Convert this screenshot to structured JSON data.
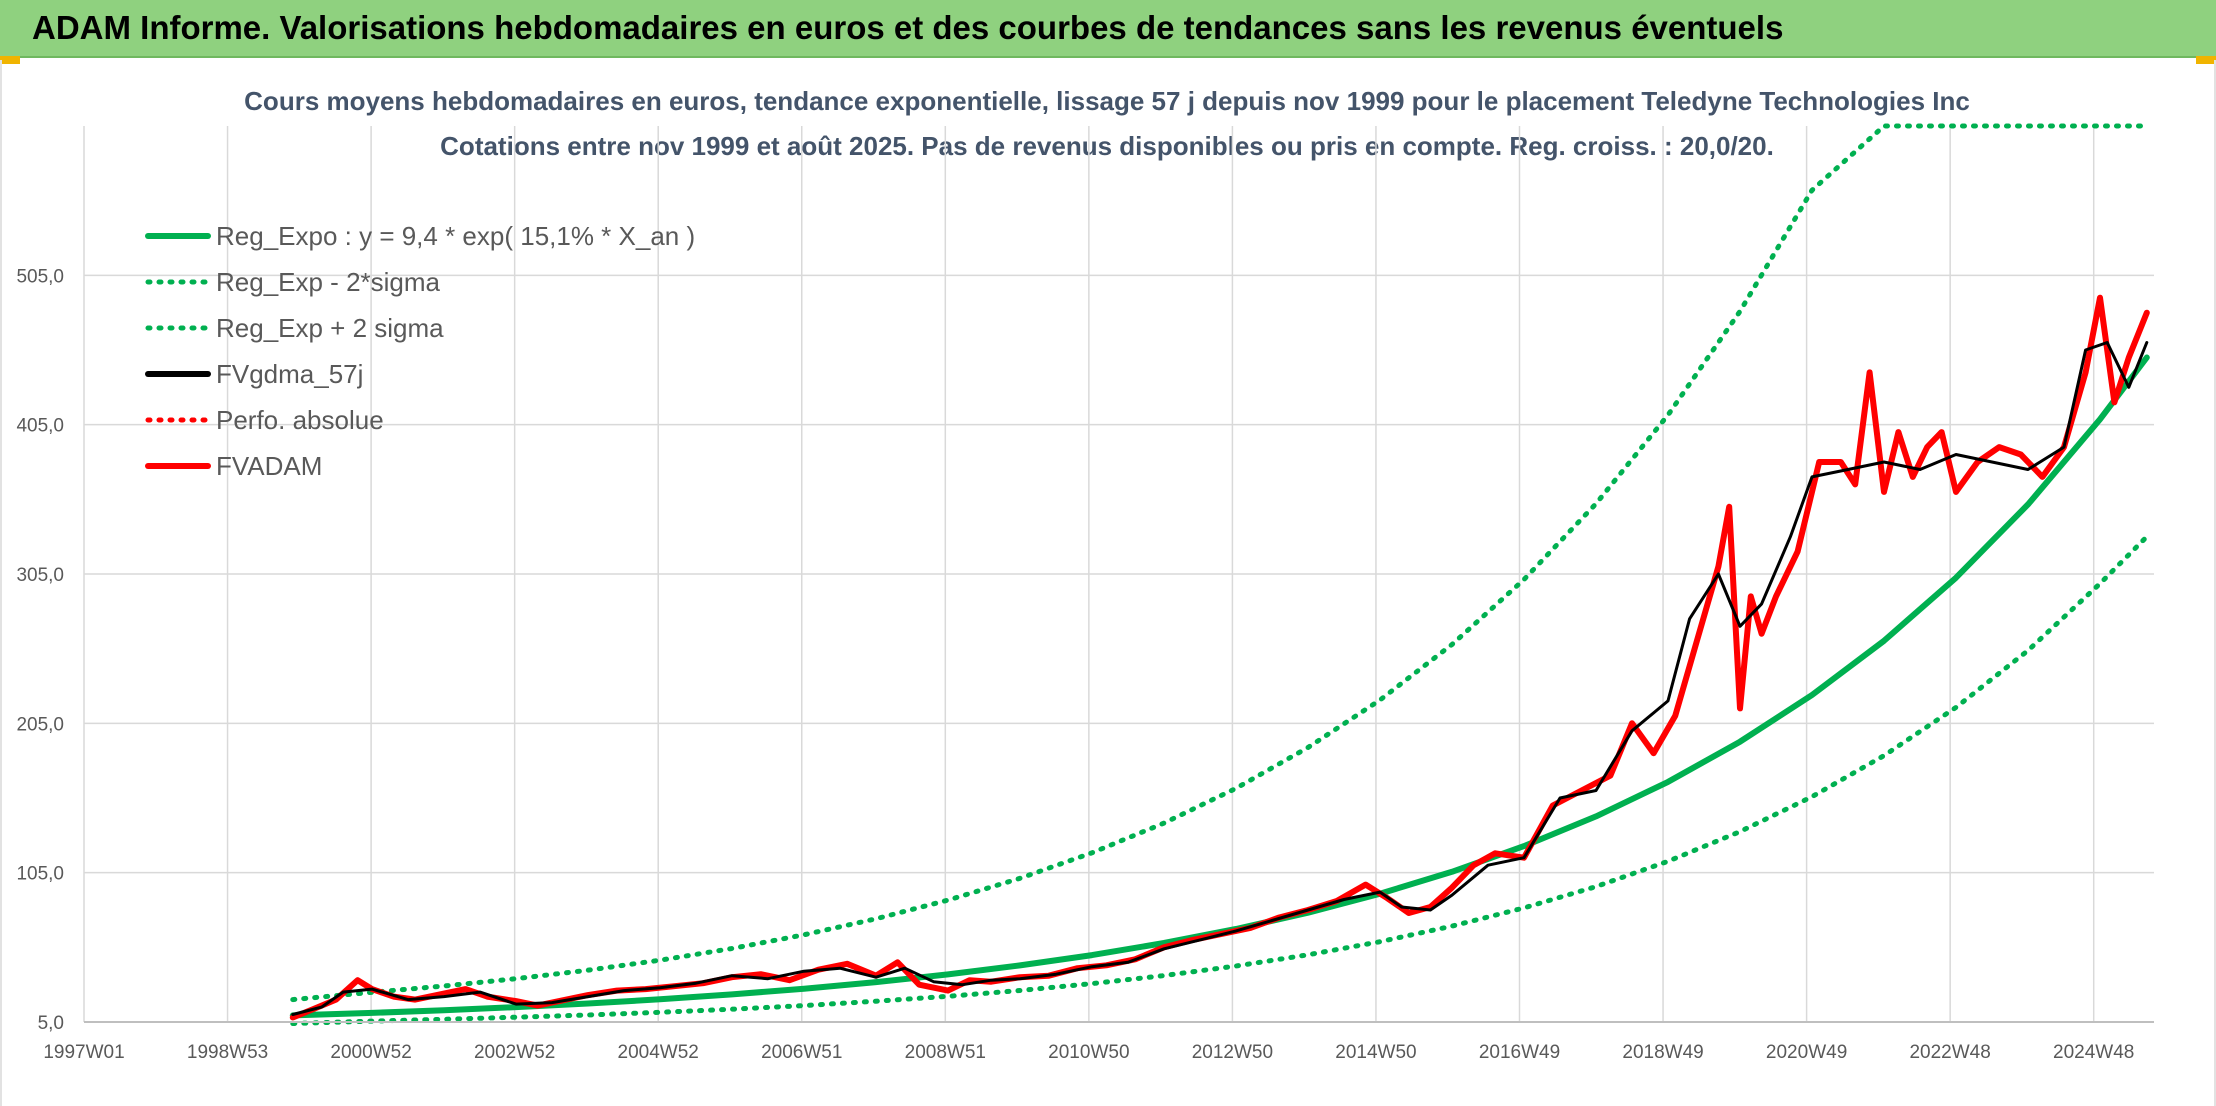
{
  "header": {
    "title": "ADAM Informe. Valorisations hebdomadaires en euros et des courbes de tendances sans les revenus éventuels"
  },
  "colors": {
    "header_bg": "#8fd17f",
    "reg_expo": "#00b050",
    "fvgdma": "#000000",
    "fvadam": "#ff0000",
    "grid": "#d9d9d9",
    "title_text": "#44546a",
    "axis_text": "#595959"
  },
  "chart_data": {
    "type": "line",
    "title": "Cours moyens hebdomadaires en euros, tendance exponentielle, lissage 57 j depuis nov 1999 pour le placement Teledyne Technologies Inc",
    "subtitle": "Cotations entre nov 1999 et août 2025. Pas de revenus disponibles ou pris en compte. Reg. croiss. : 20,0/20.",
    "xlabel": "",
    "ylabel": "",
    "x_ticks": [
      "1997W01",
      "1998W53",
      "2000W52",
      "2002W52",
      "2004W52",
      "2006W51",
      "2008W51",
      "2010W50",
      "2012W50",
      "2014W50",
      "2016W49",
      "2018W49",
      "2020W49",
      "2022W48",
      "2024W48"
    ],
    "x_range": [
      1997.0,
      2025.75
    ],
    "y_ticks": [
      "5,0",
      "105,0",
      "205,0",
      "305,0",
      "405,0",
      "505,0"
    ],
    "ylim": [
      5,
      605
    ],
    "grid": true,
    "legend_position": "top-left",
    "series": [
      {
        "name": "Reg_Expo : y = 9,4 * exp( 15,1% *  X_an )",
        "style": "solid-thick",
        "color": "#00b050",
        "x": [
          1999.9,
          2001,
          2002,
          2003,
          2004,
          2005,
          2006,
          2007,
          2008,
          2009,
          2010,
          2011,
          2012,
          2013,
          2014,
          2015,
          2016,
          2017,
          2018,
          2019,
          2020,
          2021,
          2022,
          2023,
          2024,
          2025,
          2025.65
        ],
        "y": [
          9.4,
          11.1,
          12.9,
          15.0,
          17.4,
          20.2,
          23.5,
          27.3,
          31.7,
          36.9,
          42.9,
          49.8,
          57.9,
          67.3,
          78.2,
          90.9,
          105.6,
          122.8,
          142.7,
          165.8,
          192.7,
          224.0,
          260.3,
          302.5,
          351.6,
          408.6,
          450.0
        ]
      },
      {
        "name": "Reg_Exp - 2*sigma",
        "style": "dotted",
        "color": "#00b050",
        "x": [
          1999.9,
          2001,
          2002,
          2003,
          2004,
          2005,
          2006,
          2007,
          2008,
          2009,
          2010,
          2011,
          2012,
          2013,
          2014,
          2015,
          2016,
          2017,
          2018,
          2019,
          2020,
          2021,
          2022,
          2023,
          2024,
          2025,
          2025.65
        ],
        "y": [
          4.0,
          5.6,
          6.8,
          8.2,
          9.7,
          11.5,
          13.6,
          16.0,
          18.9,
          22.2,
          26.1,
          30.7,
          36.1,
          42.5,
          50.0,
          58.8,
          69.2,
          81.4,
          95.7,
          112.6,
          132.5,
          155.9,
          183.4,
          215.7,
          253.8,
          298.6,
          330.0
        ]
      },
      {
        "name": "Reg_Exp + 2 sigma",
        "style": "dotted",
        "color": "#00b050",
        "x": [
          1999.9,
          2001,
          2002,
          2003,
          2004,
          2005,
          2006,
          2007,
          2008,
          2009,
          2010,
          2011,
          2012,
          2013,
          2014,
          2015,
          2016,
          2017,
          2018,
          2019,
          2020,
          2021,
          2022,
          2023,
          2024,
          2025,
          2025.65
        ],
        "y": [
          20.0,
          24.9,
          29.1,
          34.0,
          39.7,
          46.4,
          54.2,
          63.4,
          74.1,
          86.6,
          101.2,
          118.3,
          138.2,
          161.5,
          188.8,
          220.6,
          257.8,
          301.3,
          352.1,
          411.5,
          480.9,
          562.0,
          605.0,
          605.0,
          605.0,
          605.0,
          605.0
        ]
      },
      {
        "name": "FVgdma_57j",
        "style": "solid",
        "color": "#000000",
        "x": [
          1999.9,
          2000.3,
          2000.6,
          2001.0,
          2001.5,
          2002.0,
          2002.5,
          2003.0,
          2003.5,
          2004.0,
          2004.5,
          2005.0,
          2005.5,
          2006.0,
          2006.5,
          2007.0,
          2007.5,
          2008.0,
          2008.4,
          2008.8,
          2009.2,
          2009.6,
          2010.0,
          2010.5,
          2011.0,
          2011.5,
          2012.0,
          2012.5,
          2013.0,
          2013.5,
          2014.0,
          2014.5,
          2015.0,
          2015.3,
          2015.7,
          2016.0,
          2016.5,
          2017.0,
          2017.5,
          2018.0,
          2018.5,
          2019.0,
          2019.3,
          2019.7,
          2020.0,
          2020.3,
          2020.7,
          2021.0,
          2021.5,
          2022.0,
          2022.5,
          2023.0,
          2023.5,
          2024.0,
          2024.5,
          2024.8,
          2025.1,
          2025.4,
          2025.65
        ],
        "y": [
          10,
          15,
          25,
          27,
          20,
          22,
          25,
          17,
          18,
          22,
          26,
          28,
          31,
          36,
          34,
          39,
          41,
          35,
          41,
          32,
          30,
          33,
          34,
          37,
          42,
          45,
          54,
          60,
          66,
          73,
          80,
          87,
          92,
          82,
          80,
          90,
          110,
          115,
          155,
          160,
          200,
          220,
          275,
          305,
          270,
          285,
          330,
          370,
          375,
          380,
          375,
          385,
          380,
          375,
          390,
          455,
          460,
          430,
          460
        ]
      },
      {
        "name": "Perfo. absolue",
        "style": "dotted",
        "color": "#ff0000",
        "x": [],
        "y": []
      },
      {
        "name": "FVADAM",
        "style": "solid-thick",
        "color": "#ff0000",
        "x": [
          1999.9,
          2000.2,
          2000.5,
          2000.8,
          2001.0,
          2001.3,
          2001.6,
          2002.0,
          2002.3,
          2002.6,
          2003.0,
          2003.3,
          2003.6,
          2004.0,
          2004.4,
          2004.8,
          2005.2,
          2005.6,
          2006.0,
          2006.4,
          2006.8,
          2007.2,
          2007.6,
          2008.0,
          2008.3,
          2008.6,
          2009.0,
          2009.3,
          2009.6,
          2010.0,
          2010.4,
          2010.8,
          2011.2,
          2011.6,
          2012.0,
          2012.4,
          2012.8,
          2013.2,
          2013.6,
          2014.0,
          2014.4,
          2014.8,
          2015.1,
          2015.4,
          2015.7,
          2016.0,
          2016.3,
          2016.6,
          2017.0,
          2017.4,
          2017.8,
          2018.2,
          2018.5,
          2018.8,
          2019.1,
          2019.4,
          2019.7,
          2019.85,
          2020.0,
          2020.15,
          2020.3,
          2020.5,
          2020.8,
          2021.1,
          2021.4,
          2021.6,
          2021.8,
          2022.0,
          2022.2,
          2022.4,
          2022.6,
          2022.8,
          2023.0,
          2023.3,
          2023.6,
          2023.9,
          2024.2,
          2024.5,
          2024.8,
          2025.0,
          2025.2,
          2025.4,
          2025.65
        ],
        "y": [
          8,
          14,
          20,
          33,
          27,
          22,
          20,
          24,
          27,
          22,
          19,
          16,
          19,
          23,
          26,
          27,
          29,
          31,
          35,
          37,
          33,
          40,
          44,
          36,
          45,
          30,
          26,
          33,
          32,
          35,
          36,
          41,
          43,
          47,
          55,
          60,
          64,
          68,
          75,
          80,
          86,
          97,
          88,
          78,
          82,
          95,
          110,
          118,
          115,
          150,
          160,
          170,
          205,
          185,
          210,
          260,
          310,
          350,
          215,
          290,
          265,
          290,
          320,
          380,
          380,
          365,
          440,
          360,
          400,
          370,
          390,
          400,
          360,
          380,
          390,
          385,
          370,
          390,
          440,
          490,
          420,
          450,
          480
        ]
      }
    ]
  }
}
